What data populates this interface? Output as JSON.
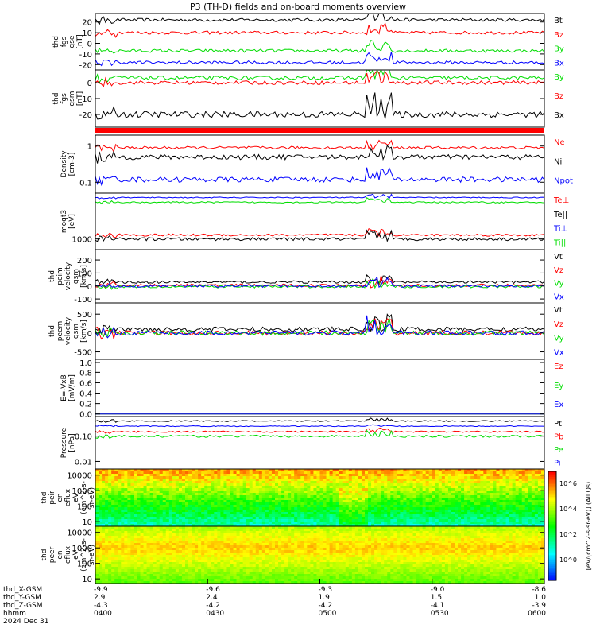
{
  "title": "P3 (TH-D) fields and on-board moments overview",
  "chart_data": [
    {
      "type": "line",
      "ylabel": [
        "thd",
        "fgs",
        "gse",
        "[nT]"
      ],
      "yticks": [
        "20",
        "10",
        "0",
        "-10",
        "-20"
      ],
      "ylim": [
        -25,
        28
      ],
      "series": [
        {
          "name": "Bt",
          "color": "#000000",
          "level": 22,
          "amp": 1.5
        },
        {
          "name": "Bz",
          "color": "#ff0000",
          "level": 10,
          "amp": 1.5
        },
        {
          "name": "By",
          "color": "#00dd00",
          "level": -7,
          "amp": 1.5
        },
        {
          "name": "Bx",
          "color": "#0000ff",
          "level": -18,
          "amp": 1.5
        }
      ]
    },
    {
      "type": "line",
      "ylabel": [
        "thd",
        "fgs",
        "gsm",
        "[nT]"
      ],
      "yticks": [
        "0",
        "-10",
        "-20"
      ],
      "ylim": [
        -28,
        8
      ],
      "series": [
        {
          "name": "By",
          "color": "#00dd00",
          "level": 3,
          "amp": 1.2
        },
        {
          "name": "Bz",
          "color": "#ff0000",
          "level": 0,
          "amp": 1.2
        },
        {
          "name": "Bx",
          "color": "#000000",
          "level": -20,
          "amp": 2
        }
      ]
    },
    {
      "type": "line",
      "ylabel": [
        "Density",
        "[cm-3]"
      ],
      "yticks": [
        "1",
        "0.1"
      ],
      "ylim": [
        0.05,
        2
      ],
      "series": [
        {
          "name": "Ne",
          "color": "#ff0000",
          "level": 0.9,
          "amp": 0.08
        },
        {
          "name": "Ni",
          "color": "#000000",
          "level": 0.5,
          "amp": 0.08
        },
        {
          "name": "Npot",
          "color": "#0000ff",
          "level": 0.12,
          "amp": 0.02
        }
      ]
    },
    {
      "type": "line",
      "ylabel": [
        "moqt3",
        "[eV]"
      ],
      "yticks": [
        "1000"
      ],
      "ylim": [
        500,
        20000
      ],
      "series": [
        {
          "name": "Te⊥",
          "color": "#ff0000",
          "level": 1300,
          "amp": 100
        },
        {
          "name": "Te||",
          "color": "#000000",
          "level": 1000,
          "amp": 100
        },
        {
          "name": "Ti⊥",
          "color": "#0000ff",
          "level": 15000,
          "amp": 500
        },
        {
          "name": "Ti||",
          "color": "#00dd00",
          "level": 11000,
          "amp": 500
        }
      ]
    },
    {
      "type": "line",
      "ylabel": [
        "thd",
        "peim",
        "velocity",
        "gsm",
        "[km/s]"
      ],
      "yticks": [
        "200",
        "100",
        "0",
        "-100"
      ],
      "ylim": [
        -130,
        280
      ],
      "series": [
        {
          "name": "Vt",
          "color": "#000000",
          "level": 30,
          "amp": 10
        },
        {
          "name": "Vz",
          "color": "#ff0000",
          "level": 5,
          "amp": 10
        },
        {
          "name": "Vy",
          "color": "#00dd00",
          "level": -5,
          "amp": 10
        },
        {
          "name": "Vx",
          "color": "#0000ff",
          "level": 0,
          "amp": 10
        }
      ]
    },
    {
      "type": "line",
      "ylabel": [
        "thd",
        "peem",
        "velocity",
        "gsm",
        "[km/s]"
      ],
      "yticks": [
        "500",
        "0",
        "-500"
      ],
      "ylim": [
        -700,
        800
      ],
      "series": [
        {
          "name": "Vt",
          "color": "#000000",
          "level": 100,
          "amp": 60
        },
        {
          "name": "Vz",
          "color": "#ff0000",
          "level": 0,
          "amp": 60
        },
        {
          "name": "Vy",
          "color": "#00dd00",
          "level": 0,
          "amp": 60
        },
        {
          "name": "Vx",
          "color": "#0000ff",
          "level": 0,
          "amp": 60
        }
      ]
    },
    {
      "type": "line",
      "ylabel": [
        "E=-VxB",
        "[mV/m]"
      ],
      "yticks": [
        "1.0",
        "0.8",
        "0.6",
        "0.4",
        "0.2",
        "0.0"
      ],
      "ylim": [
        -0.05,
        1.05
      ],
      "series": [
        {
          "name": "Ez",
          "color": "#ff0000",
          "level": 0,
          "amp": 0
        },
        {
          "name": "Ey",
          "color": "#00dd00",
          "level": 0,
          "amp": 0
        },
        {
          "name": "Ex",
          "color": "#0000ff",
          "level": 0,
          "amp": 0
        }
      ]
    },
    {
      "type": "line",
      "ylabel": [
        "Pressure",
        "[nPa]"
      ],
      "yticks": [
        "0.10",
        "0.01"
      ],
      "ylim": [
        0.005,
        0.6
      ],
      "series": [
        {
          "name": "Pt",
          "color": "#000000",
          "level": 0.4,
          "amp": 0.02
        },
        {
          "name": "Pb",
          "color": "#ff0000",
          "level": 0.15,
          "amp": 0.01
        },
        {
          "name": "Pe",
          "color": "#00dd00",
          "level": 0.1,
          "amp": 0.01
        },
        {
          "name": "Pi",
          "color": "#0000ff",
          "level": 0.25,
          "amp": 0.01
        }
      ]
    },
    {
      "type": "heatmap",
      "ylabel": [
        "thd",
        "peir",
        "en",
        "eflux",
        "eV",
        "(cm^2-s-",
        "sr-eV)"
      ],
      "yticks": [
        "10000",
        "1000",
        "100",
        "10"
      ],
      "ylim": [
        5,
        25000
      ]
    },
    {
      "type": "heatmap",
      "ylabel": [
        "thd",
        "peer",
        "en",
        "eflux",
        "eV",
        "(cm^2-s-",
        "sr-eV)"
      ],
      "yticks": [
        "10000",
        "1000",
        "100",
        "10"
      ],
      "ylim": [
        5,
        25000
      ]
    }
  ],
  "colorbar": {
    "ticks": [
      "10^6",
      "10^4",
      "10^2",
      "10^0"
    ],
    "label": "[eV/(cm^2-s-sr-eV)] (All Qs)"
  },
  "xaxis": {
    "row_labels": [
      "thd_X-GSM",
      "thd_Y-GSM",
      "thd_Z-GSM",
      "hhmm",
      "2024 Dec 31"
    ],
    "columns": [
      {
        "x": "-9.9",
        "y": "2.9",
        "z": "-4.3",
        "t": "0400"
      },
      {
        "x": "-9.6",
        "y": "2.4",
        "z": "-4.2",
        "t": "0430"
      },
      {
        "x": "-9.3",
        "y": "1.9",
        "z": "-4.2",
        "t": "0500"
      },
      {
        "x": "-9.0",
        "y": "1.5",
        "z": "-4.1",
        "t": "0530"
      },
      {
        "x": "-8.6",
        "y": "1.0",
        "z": "-3.9",
        "t": "0600"
      }
    ]
  }
}
